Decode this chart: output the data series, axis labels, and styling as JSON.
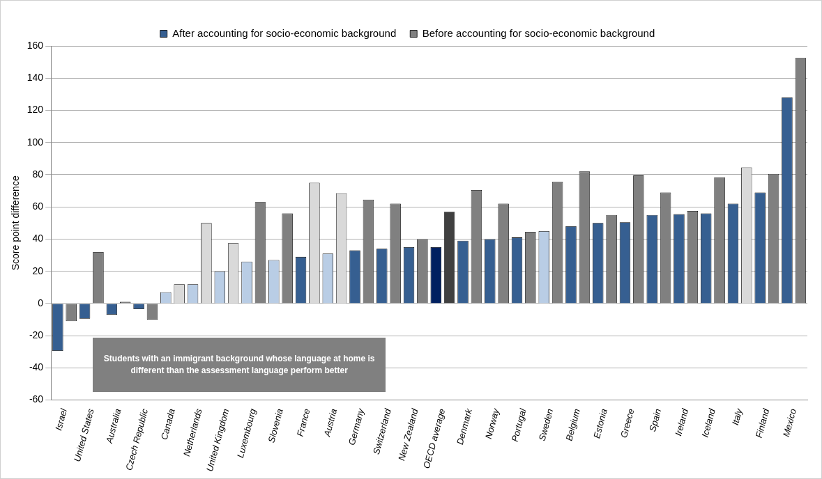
{
  "chart_data": {
    "type": "bar",
    "ylabel": "Score point difference",
    "legend": "top",
    "grid": "y",
    "ylim": [
      -60,
      160
    ],
    "yticks": [
      -60,
      -40,
      -20,
      0,
      20,
      40,
      60,
      80,
      100,
      120,
      140,
      160
    ],
    "categories": [
      "Israel",
      "United States",
      "Australia",
      "Czech Republic",
      "Canada",
      "Netherlands",
      "United Kingdom",
      "Luxembourg",
      "Slovenia",
      "France",
      "Austria",
      "Germany",
      "Switzerland",
      "New Zealand",
      "OECD average",
      "Denmark",
      "Norway",
      "Portugal",
      "Sweden",
      "Belgium",
      "Estonia",
      "Greece",
      "Spain",
      "Ireland",
      "Iceland",
      "Italy",
      "Finland",
      "Mexico"
    ],
    "series": [
      {
        "name": "After accounting for socio-economic background",
        "color": "#365f91",
        "colors": [
          "#365f91",
          "#365f91",
          "#365f91",
          "#365f91",
          "#b9cde5",
          "#b9cde5",
          "#b9cde5",
          "#b9cde5",
          "#b9cde5",
          "#365f91",
          "#b9cde5",
          "#365f91",
          "#365f91",
          "#365f91",
          "#002060",
          "#365f91",
          "#365f91",
          "#365f91",
          "#b9cde5",
          "#365f91",
          "#365f91",
          "#365f91",
          "#365f91",
          "#365f91",
          "#365f91",
          "#365f91",
          "#365f91",
          "#365f91"
        ],
        "values": [
          -29.5,
          -9.5,
          -7,
          -3.5,
          7,
          12,
          20,
          26,
          27,
          29,
          31,
          33,
          34,
          35,
          35,
          39,
          40,
          41,
          45,
          48,
          50,
          50.5,
          55,
          55.5,
          56,
          62,
          69,
          128
        ]
      },
      {
        "name": "Before accounting for socio-economic background",
        "color": "#808080",
        "colors": [
          "#808080",
          "#808080",
          "#808080",
          "#808080",
          "#d9d9d9",
          "#d9d9d9",
          "#d9d9d9",
          "#808080",
          "#808080",
          "#d9d9d9",
          "#d9d9d9",
          "#808080",
          "#808080",
          "#808080",
          "#404040",
          "#808080",
          "#808080",
          "#808080",
          "#808080",
          "#808080",
          "#808080",
          "#808080",
          "#808080",
          "#808080",
          "#808080",
          "#d9d9d9",
          "#808080",
          "#808080"
        ],
        "values": [
          -11,
          32,
          1,
          -10,
          12,
          50,
          37.5,
          63,
          56,
          75,
          68.5,
          64.5,
          62,
          40,
          57,
          70.5,
          62,
          44.5,
          75.5,
          82,
          55,
          79.5,
          69,
          57.5,
          78.5,
          84.5,
          80.5,
          152.5
        ]
      }
    ],
    "annotations": [
      "Students with an immigrant background whose language at home is different than the assessment language perform better"
    ]
  }
}
